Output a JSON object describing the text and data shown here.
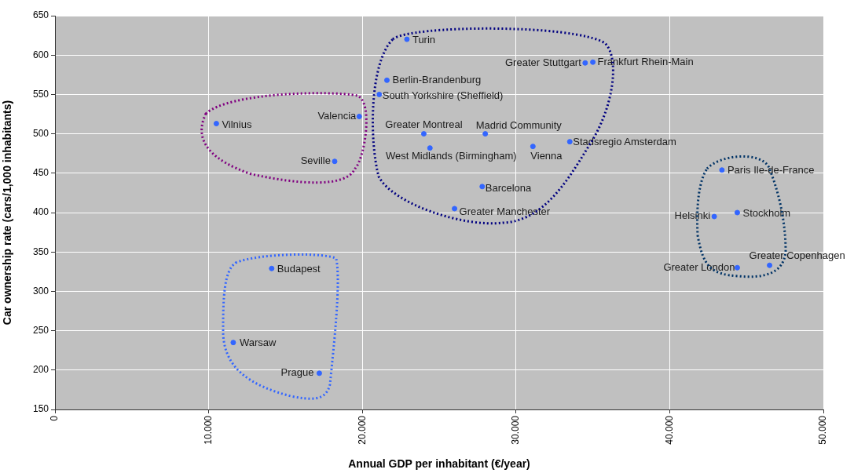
{
  "chart_data": {
    "type": "scatter",
    "xlabel": "Annual GDP per inhabitant (€/year)",
    "ylabel": "Car ownership rate (cars/1,000 inhabitants)",
    "xlim": [
      0,
      50000
    ],
    "ylim": [
      150,
      650
    ],
    "xticks": [
      0,
      {
        "value": 10000,
        "label": "10.000"
      },
      {
        "value": 20000,
        "label": "20.000"
      },
      {
        "value": 30000,
        "label": "30.000"
      },
      {
        "value": 40000,
        "label": "40.000"
      },
      {
        "value": 50000,
        "label": "50.000"
      }
    ],
    "yticks": [
      150,
      200,
      250,
      300,
      350,
      400,
      450,
      500,
      550,
      600,
      650
    ],
    "grid": true,
    "marker": "circle",
    "series": [
      {
        "name": "Turin",
        "color": "#3366ff",
        "x": [
          22900
        ],
        "values": [
          620
        ]
      },
      {
        "name": "Greater Stuttgart",
        "color": "#3366ff",
        "x": [
          34500
        ],
        "values": [
          590
        ]
      },
      {
        "name": "Frankfurt Rhein-Main",
        "color": "#3366ff",
        "x": [
          35000
        ],
        "values": [
          591
        ]
      },
      {
        "name": "Berlin-Brandenburg",
        "color": "#3366ff",
        "x": [
          21600
        ],
        "values": [
          568
        ]
      },
      {
        "name": "South Yorkshire (Sheffield)",
        "color": "#3366ff",
        "x": [
          21100
        ],
        "values": [
          550
        ]
      },
      {
        "name": "Valencia",
        "color": "#3366ff",
        "x": [
          19800
        ],
        "values": [
          522
        ]
      },
      {
        "name": "Vilnius",
        "color": "#3366ff",
        "x": [
          10500
        ],
        "values": [
          513
        ]
      },
      {
        "name": "Seville",
        "color": "#3366ff",
        "x": [
          18200
        ],
        "values": [
          465
        ]
      },
      {
        "name": "Greater Montreal",
        "color": "#3366ff",
        "x": [
          24000
        ],
        "values": [
          500
        ]
      },
      {
        "name": "Madrid Community",
        "color": "#3366ff",
        "x": [
          28000
        ],
        "values": [
          500
        ]
      },
      {
        "name": "West Midlands (Birmingham)",
        "color": "#3366ff",
        "x": [
          24400
        ],
        "values": [
          482
        ]
      },
      {
        "name": "Vienna",
        "color": "#3366ff",
        "x": [
          31100
        ],
        "values": [
          484
        ]
      },
      {
        "name": "Stadsregio Amsterdam",
        "color": "#3366ff",
        "x": [
          33500
        ],
        "values": [
          490
        ]
      },
      {
        "name": "Barcelona",
        "color": "#3366ff",
        "x": [
          27800
        ],
        "values": [
          433
        ]
      },
      {
        "name": "Greater Manchester",
        "color": "#3366ff",
        "x": [
          26000
        ],
        "values": [
          405
        ]
      },
      {
        "name": "Paris Ile-de-France",
        "color": "#3366ff",
        "x": [
          43400
        ],
        "values": [
          454
        ]
      },
      {
        "name": "Helsinki",
        "color": "#3366ff",
        "x": [
          42900
        ],
        "values": [
          395
        ]
      },
      {
        "name": "Stockholm",
        "color": "#3366ff",
        "x": [
          44400
        ],
        "values": [
          400
        ]
      },
      {
        "name": "Greater London",
        "color": "#3366ff",
        "x": [
          44400
        ],
        "values": [
          330
        ]
      },
      {
        "name": "Greater Copenhagen",
        "color": "#3366ff",
        "x": [
          46500
        ],
        "values": [
          333
        ]
      },
      {
        "name": "Budapest",
        "color": "#3366ff",
        "x": [
          14100
        ],
        "values": [
          329
        ]
      },
      {
        "name": "Warsaw",
        "color": "#3366ff",
        "x": [
          11600
        ],
        "values": [
          235
        ]
      },
      {
        "name": "Prague",
        "color": "#3366ff",
        "x": [
          17200
        ],
        "values": [
          196
        ]
      }
    ]
  }
}
